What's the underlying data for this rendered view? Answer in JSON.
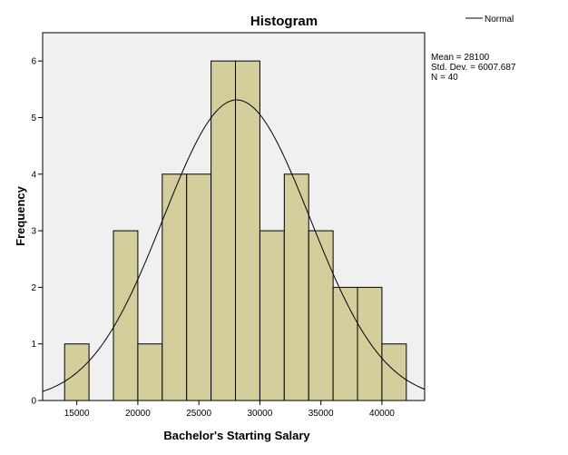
{
  "chart_data": {
    "type": "bar",
    "title": "Histogram",
    "xlabel": "Bachelor's Starting Salary",
    "ylabel": "Frequency",
    "bin_width": 2000,
    "bins": [
      {
        "start": 14000,
        "end": 16000,
        "count": 1
      },
      {
        "start": 16000,
        "end": 18000,
        "count": 0
      },
      {
        "start": 18000,
        "end": 20000,
        "count": 3
      },
      {
        "start": 20000,
        "end": 22000,
        "count": 1
      },
      {
        "start": 22000,
        "end": 24000,
        "count": 4
      },
      {
        "start": 24000,
        "end": 26000,
        "count": 4
      },
      {
        "start": 26000,
        "end": 28000,
        "count": 6
      },
      {
        "start": 28000,
        "end": 30000,
        "count": 6
      },
      {
        "start": 30000,
        "end": 32000,
        "count": 3
      },
      {
        "start": 32000,
        "end": 34000,
        "count": 4
      },
      {
        "start": 34000,
        "end": 36000,
        "count": 3
      },
      {
        "start": 36000,
        "end": 38000,
        "count": 2
      },
      {
        "start": 38000,
        "end": 40000,
        "count": 2
      },
      {
        "start": 40000,
        "end": 42000,
        "count": 1
      }
    ],
    "xlim": [
      12200,
      43500
    ],
    "ylim": [
      0,
      6.5
    ],
    "x_ticks": [
      15000,
      20000,
      25000,
      30000,
      35000,
      40000
    ],
    "y_ticks": [
      0,
      1,
      2,
      3,
      4,
      5,
      6
    ],
    "grid": false,
    "normal_curve": {
      "mean": 28100,
      "std": 6007.687,
      "n": 40
    },
    "legend": {
      "position": "top-right",
      "entries": [
        {
          "name": "Normal",
          "style": "line"
        }
      ]
    },
    "stats": [
      "Mean = 28100",
      "Std. Dev. = 6007.687",
      "N = 40"
    ],
    "colors": {
      "bar_fill": "#d3ce9c",
      "bar_stroke": "#000000",
      "plot_bg": "#f0f0f0",
      "curve": "#000000"
    }
  }
}
